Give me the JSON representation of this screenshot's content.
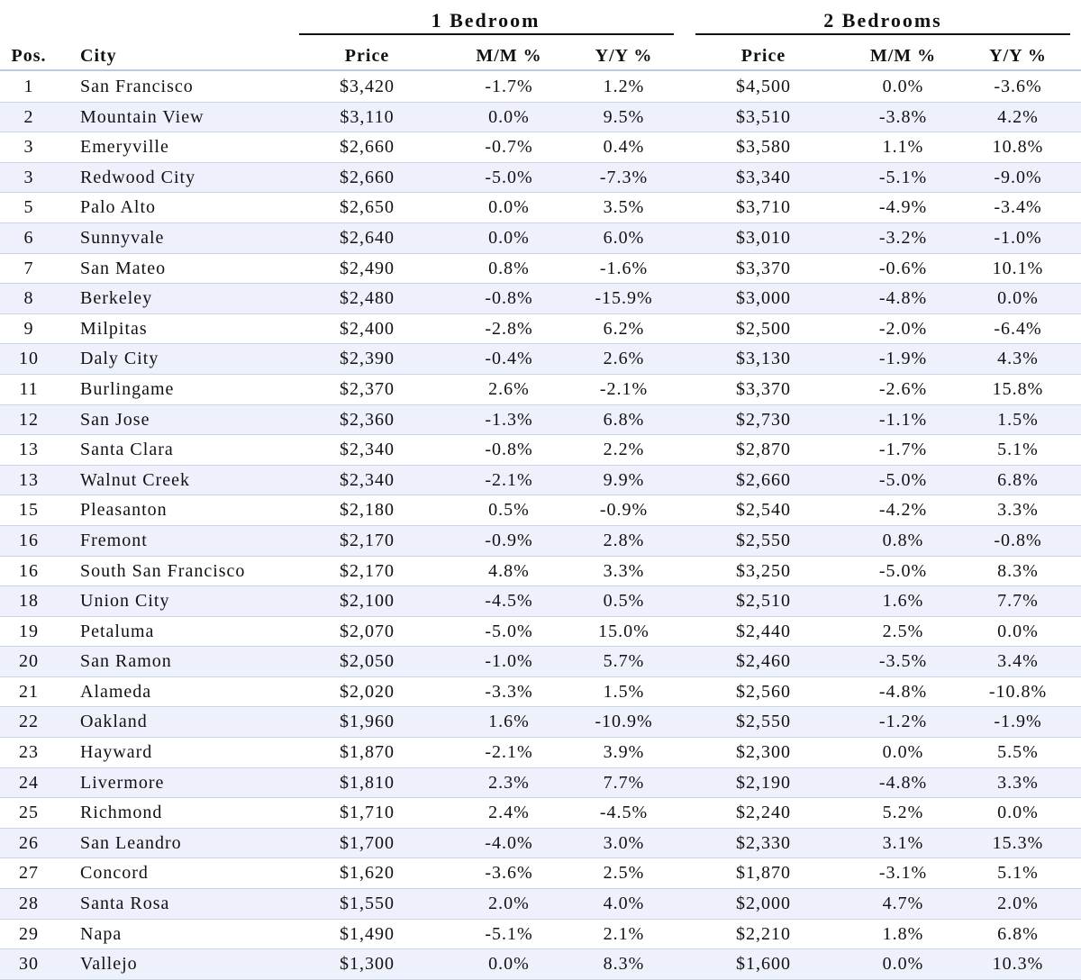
{
  "groups": {
    "one_bedroom": "1 Bedroom",
    "two_bedrooms": "2 Bedrooms"
  },
  "headers": {
    "pos": "Pos.",
    "city": "City",
    "price1": "Price",
    "mm1": "M/M %",
    "yy1": "Y/Y %",
    "price2": "Price",
    "mm2": "M/M %",
    "yy2": "Y/Y %"
  },
  "rows": [
    {
      "pos": "1",
      "city": "San Francisco",
      "price1": "$3,420",
      "mm1": "-1.7%",
      "yy1": "1.2%",
      "price2": "$4,500",
      "mm2": "0.0%",
      "yy2": "-3.6%"
    },
    {
      "pos": "2",
      "city": "Mountain View",
      "price1": "$3,110",
      "mm1": "0.0%",
      "yy1": "9.5%",
      "price2": "$3,510",
      "mm2": "-3.8%",
      "yy2": "4.2%"
    },
    {
      "pos": "3",
      "city": "Emeryville",
      "price1": "$2,660",
      "mm1": "-0.7%",
      "yy1": "0.4%",
      "price2": "$3,580",
      "mm2": "1.1%",
      "yy2": "10.8%"
    },
    {
      "pos": "3",
      "city": "Redwood City",
      "price1": "$2,660",
      "mm1": "-5.0%",
      "yy1": "-7.3%",
      "price2": "$3,340",
      "mm2": "-5.1%",
      "yy2": "-9.0%"
    },
    {
      "pos": "5",
      "city": "Palo Alto",
      "price1": "$2,650",
      "mm1": "0.0%",
      "yy1": "3.5%",
      "price2": "$3,710",
      "mm2": "-4.9%",
      "yy2": "-3.4%"
    },
    {
      "pos": "6",
      "city": "Sunnyvale",
      "price1": "$2,640",
      "mm1": "0.0%",
      "yy1": "6.0%",
      "price2": "$3,010",
      "mm2": "-3.2%",
      "yy2": "-1.0%"
    },
    {
      "pos": "7",
      "city": "San Mateo",
      "price1": "$2,490",
      "mm1": "0.8%",
      "yy1": "-1.6%",
      "price2": "$3,370",
      "mm2": "-0.6%",
      "yy2": "10.1%"
    },
    {
      "pos": "8",
      "city": "Berkeley",
      "price1": "$2,480",
      "mm1": "-0.8%",
      "yy1": "-15.9%",
      "price2": "$3,000",
      "mm2": "-4.8%",
      "yy2": "0.0%"
    },
    {
      "pos": "9",
      "city": "Milpitas",
      "price1": "$2,400",
      "mm1": "-2.8%",
      "yy1": "6.2%",
      "price2": "$2,500",
      "mm2": "-2.0%",
      "yy2": "-6.4%"
    },
    {
      "pos": "10",
      "city": "Daly City",
      "price1": "$2,390",
      "mm1": "-0.4%",
      "yy1": "2.6%",
      "price2": "$3,130",
      "mm2": "-1.9%",
      "yy2": "4.3%"
    },
    {
      "pos": "11",
      "city": "Burlingame",
      "price1": "$2,370",
      "mm1": "2.6%",
      "yy1": "-2.1%",
      "price2": "$3,370",
      "mm2": "-2.6%",
      "yy2": "15.8%"
    },
    {
      "pos": "12",
      "city": "San Jose",
      "price1": "$2,360",
      "mm1": "-1.3%",
      "yy1": "6.8%",
      "price2": "$2,730",
      "mm2": "-1.1%",
      "yy2": "1.5%"
    },
    {
      "pos": "13",
      "city": "Santa Clara",
      "price1": "$2,340",
      "mm1": "-0.8%",
      "yy1": "2.2%",
      "price2": "$2,870",
      "mm2": "-1.7%",
      "yy2": "5.1%"
    },
    {
      "pos": "13",
      "city": "Walnut Creek",
      "price1": "$2,340",
      "mm1": "-2.1%",
      "yy1": "9.9%",
      "price2": "$2,660",
      "mm2": "-5.0%",
      "yy2": "6.8%"
    },
    {
      "pos": "15",
      "city": "Pleasanton",
      "price1": "$2,180",
      "mm1": "0.5%",
      "yy1": "-0.9%",
      "price2": "$2,540",
      "mm2": "-4.2%",
      "yy2": "3.3%"
    },
    {
      "pos": "16",
      "city": "Fremont",
      "price1": "$2,170",
      "mm1": "-0.9%",
      "yy1": "2.8%",
      "price2": "$2,550",
      "mm2": "0.8%",
      "yy2": "-0.8%"
    },
    {
      "pos": "16",
      "city": "South San Francisco",
      "price1": "$2,170",
      "mm1": "4.8%",
      "yy1": "3.3%",
      "price2": "$3,250",
      "mm2": "-5.0%",
      "yy2": "8.3%"
    },
    {
      "pos": "18",
      "city": "Union City",
      "price1": "$2,100",
      "mm1": "-4.5%",
      "yy1": "0.5%",
      "price2": "$2,510",
      "mm2": "1.6%",
      "yy2": "7.7%"
    },
    {
      "pos": "19",
      "city": "Petaluma",
      "price1": "$2,070",
      "mm1": "-5.0%",
      "yy1": "15.0%",
      "price2": "$2,440",
      "mm2": "2.5%",
      "yy2": "0.0%"
    },
    {
      "pos": "20",
      "city": "San Ramon",
      "price1": "$2,050",
      "mm1": "-1.0%",
      "yy1": "5.7%",
      "price2": "$2,460",
      "mm2": "-3.5%",
      "yy2": "3.4%"
    },
    {
      "pos": "21",
      "city": "Alameda",
      "price1": "$2,020",
      "mm1": "-3.3%",
      "yy1": "1.5%",
      "price2": "$2,560",
      "mm2": "-4.8%",
      "yy2": "-10.8%"
    },
    {
      "pos": "22",
      "city": "Oakland",
      "price1": "$1,960",
      "mm1": "1.6%",
      "yy1": "-10.9%",
      "price2": "$2,550",
      "mm2": "-1.2%",
      "yy2": "-1.9%"
    },
    {
      "pos": "23",
      "city": "Hayward",
      "price1": "$1,870",
      "mm1": "-2.1%",
      "yy1": "3.9%",
      "price2": "$2,300",
      "mm2": "0.0%",
      "yy2": "5.5%"
    },
    {
      "pos": "24",
      "city": "Livermore",
      "price1": "$1,810",
      "mm1": "2.3%",
      "yy1": "7.7%",
      "price2": "$2,190",
      "mm2": "-4.8%",
      "yy2": "3.3%"
    },
    {
      "pos": "25",
      "city": "Richmond",
      "price1": "$1,710",
      "mm1": "2.4%",
      "yy1": "-4.5%",
      "price2": "$2,240",
      "mm2": "5.2%",
      "yy2": "0.0%"
    },
    {
      "pos": "26",
      "city": "San Leandro",
      "price1": "$1,700",
      "mm1": "-4.0%",
      "yy1": "3.0%",
      "price2": "$2,330",
      "mm2": "3.1%",
      "yy2": "15.3%"
    },
    {
      "pos": "27",
      "city": "Concord",
      "price1": "$1,620",
      "mm1": "-3.6%",
      "yy1": "2.5%",
      "price2": "$1,870",
      "mm2": "-3.1%",
      "yy2": "5.1%"
    },
    {
      "pos": "28",
      "city": "Santa Rosa",
      "price1": "$1,550",
      "mm1": "2.0%",
      "yy1": "4.0%",
      "price2": "$2,000",
      "mm2": "4.7%",
      "yy2": "2.0%"
    },
    {
      "pos": "29",
      "city": "Napa",
      "price1": "$1,490",
      "mm1": "-5.1%",
      "yy1": "2.1%",
      "price2": "$2,210",
      "mm2": "1.8%",
      "yy2": "6.8%"
    },
    {
      "pos": "30",
      "city": "Vallejo",
      "price1": "$1,300",
      "mm1": "0.0%",
      "yy1": "8.3%",
      "price2": "$1,600",
      "mm2": "0.0%",
      "yy2": "10.3%"
    }
  ]
}
